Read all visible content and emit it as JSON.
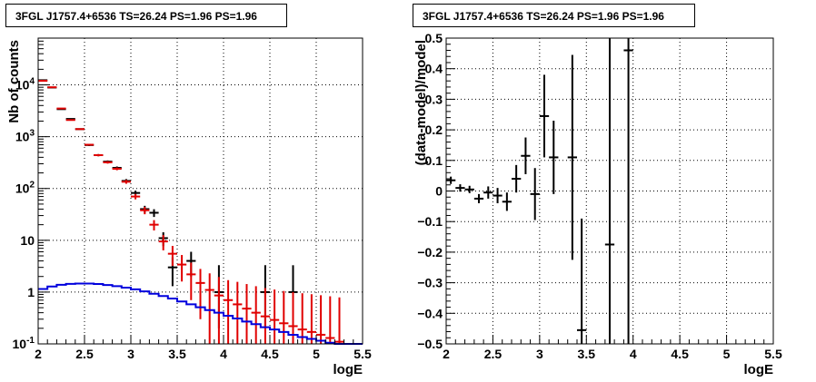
{
  "chart_data": [
    {
      "type": "scatter",
      "title": "3FGL J1757.4+6536 TS=26.24 PS=1.96 PS=1.96",
      "xlabel": "logE",
      "ylabel": "Nb of counts",
      "xlim": [
        2,
        5.5
      ],
      "ylim": [
        0.1,
        80000
      ],
      "yscale": "log",
      "grid": true,
      "x_ticks": [
        "2",
        "2.5",
        "3",
        "3.5",
        "4",
        "4.5",
        "5",
        "5.5"
      ],
      "y_ticks": [
        "10^{-1}",
        "1",
        "10",
        "10^{2}",
        "10^{3}",
        "10^{4}"
      ],
      "bin_width": 0.1,
      "series": [
        {
          "color": "#000000",
          "style": "points",
          "x": [
            2.05,
            2.15,
            2.25,
            2.35,
            2.45,
            2.55,
            2.65,
            2.75,
            2.85,
            2.95,
            3.05,
            3.15,
            3.25,
            3.35,
            3.45,
            3.65,
            3.95,
            4.45,
            4.75
          ],
          "y": [
            12300,
            8900,
            3400,
            2200,
            1400,
            690,
            440,
            330,
            250,
            140,
            82,
            40,
            34,
            11,
            3,
            4,
            1,
            1,
            1
          ],
          "err_lo": [
            110,
            95,
            58,
            47,
            37,
            26,
            21,
            18,
            16,
            12,
            9,
            6.3,
            5.8,
            3.3,
            1.7,
            2,
            0.8,
            0.8,
            0.8
          ],
          "err_hi": [
            110,
            95,
            58,
            47,
            37,
            26,
            21,
            18,
            16,
            12,
            9,
            6.3,
            5.8,
            3.3,
            1.7,
            2,
            2.3,
            2.3,
            2.3
          ]
        },
        {
          "color": "#e00000",
          "style": "points",
          "x": [
            2.05,
            2.15,
            2.25,
            2.35,
            2.45,
            2.55,
            2.65,
            2.75,
            2.85,
            2.95,
            3.05,
            3.15,
            3.25,
            3.35,
            3.45,
            3.55,
            3.65,
            3.75,
            3.85,
            3.95,
            4.05,
            4.15,
            4.25,
            4.35,
            4.45,
            4.55,
            4.65,
            4.75,
            4.85,
            4.95,
            5.05,
            5.15,
            5.25
          ],
          "y": [
            12000,
            9000,
            3500,
            2100,
            1400,
            700,
            440,
            320,
            240,
            135,
            70,
            38,
            20,
            9.5,
            5.5,
            3.4,
            2.2,
            1.5,
            1.1,
            0.86,
            0.7,
            0.58,
            0.48,
            0.4,
            0.34,
            0.29,
            0.25,
            0.22,
            0.19,
            0.17,
            0.15,
            0.13,
            0.11
          ],
          "err_lo": [
            110,
            95,
            59,
            46,
            37,
            26,
            21,
            18,
            15,
            11.6,
            8.4,
            6.2,
            4.5,
            3.1,
            2.3,
            1.8,
            1.5,
            1.2,
            1,
            0.76,
            0.6,
            0.48,
            0.38,
            0.3,
            0.24,
            0.19,
            0.15,
            0.12,
            0.09,
            0.07,
            0.05,
            0.03,
            0.01
          ],
          "err_hi": [
            110,
            95,
            59,
            46,
            37,
            26,
            21,
            18,
            15,
            11.6,
            8.4,
            6.2,
            4.5,
            3.1,
            2.3,
            1.8,
            1.5,
            1.3,
            1.2,
            1.1,
            1.0,
            1.0,
            0.95,
            0.9,
            0.86,
            0.83,
            0.8,
            0.78,
            0.76,
            0.74,
            0.72,
            0.7,
            0.68
          ]
        },
        {
          "color": "#0000dd",
          "style": "step",
          "x": [
            2.05,
            2.15,
            2.25,
            2.35,
            2.45,
            2.55,
            2.65,
            2.75,
            2.85,
            2.95,
            3.05,
            3.15,
            3.25,
            3.35,
            3.45,
            3.55,
            3.65,
            3.75,
            3.85,
            3.95,
            4.05,
            4.15,
            4.25,
            4.35,
            4.45,
            4.55,
            4.65,
            4.75,
            4.85,
            4.95,
            5.05,
            5.15,
            5.25,
            5.35,
            5.45
          ],
          "y": [
            1.15,
            1.28,
            1.38,
            1.44,
            1.46,
            1.46,
            1.43,
            1.37,
            1.3,
            1.22,
            1.13,
            1.03,
            0.93,
            0.84,
            0.75,
            0.66,
            0.58,
            0.51,
            0.45,
            0.4,
            0.35,
            0.31,
            0.27,
            0.24,
            0.21,
            0.19,
            0.17,
            0.15,
            0.135,
            0.125,
            0.115,
            0.105,
            0.1,
            0.1,
            0.1
          ]
        }
      ]
    },
    {
      "type": "scatter",
      "title": "3FGL J1757.4+6536 TS=26.24 PS=1.96 PS=1.96",
      "xlabel": "logE",
      "ylabel": "(data-model)/model",
      "xlim": [
        2,
        5.5
      ],
      "ylim": [
        -0.5,
        0.5
      ],
      "grid": true,
      "x_ticks": [
        "2",
        "2.5",
        "3",
        "3.5",
        "4",
        "4.5",
        "5",
        "5.5"
      ],
      "y_ticks": [
        "−0.5",
        "−0.4",
        "−0.3",
        "−0.2",
        "−0.1",
        "0",
        "0.1",
        "0.2",
        "0.3",
        "0.4",
        "0.5"
      ],
      "bin_width": 0.1,
      "series": [
        {
          "color": "#000000",
          "style": "points",
          "x": [
            2.05,
            2.15,
            2.25,
            2.35,
            2.45,
            2.55,
            2.65,
            2.75,
            2.85,
            2.95,
            3.05,
            3.15,
            3.35,
            3.45,
            3.75,
            3.95
          ],
          "y": [
            0.035,
            0.01,
            0.005,
            -0.025,
            -0.005,
            -0.015,
            -0.035,
            0.04,
            0.115,
            -0.01,
            0.245,
            0.11,
            0.11,
            -0.455,
            -0.175,
            0.46
          ],
          "err": [
            0.012,
            0.012,
            0.012,
            0.015,
            0.02,
            0.025,
            0.03,
            0.045,
            0.06,
            0.085,
            0.135,
            0.12,
            0.335,
            0.365,
            1.2,
            1.2
          ]
        }
      ]
    }
  ]
}
